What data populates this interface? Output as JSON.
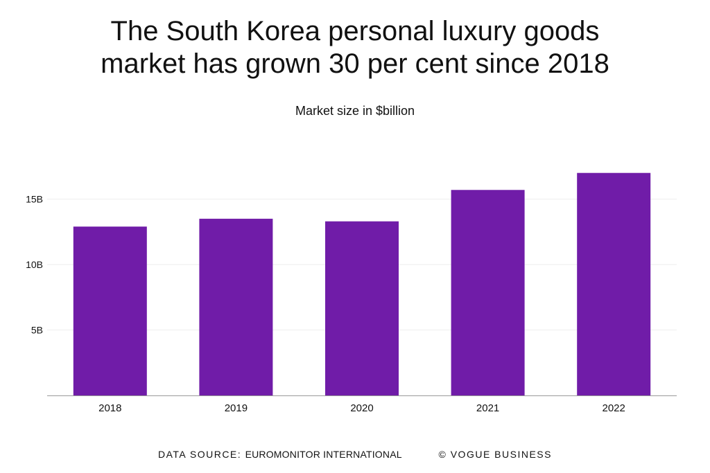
{
  "title_line1": "The South Korea personal luxury goods",
  "title_line2": "market has grown 30 per cent since 2018",
  "subtitle": "Market size in $billion",
  "footer": {
    "source_label": "DATA SOURCE:",
    "source_name": "EUROMONITOR INTERNATIONAL",
    "credit": "© VOGUE BUSINESS"
  },
  "colors": {
    "bar": "#701CA8",
    "grid": "#eeeeee",
    "axis": "#999999",
    "text": "#111111"
  },
  "chart_data": {
    "type": "bar",
    "title": "The South Korea personal luxury goods market has grown 30 per cent since 2018",
    "subtitle": "Market size in $billion",
    "categories": [
      "2018",
      "2019",
      "2020",
      "2021",
      "2022"
    ],
    "values": [
      12.9,
      13.5,
      13.3,
      15.7,
      17.0
    ],
    "yticks": [
      5,
      10,
      15
    ],
    "ytick_labels": [
      "5B",
      "10B",
      "15B"
    ],
    "ylim": [
      0,
      17.5
    ],
    "grid": true,
    "legend": "none"
  }
}
